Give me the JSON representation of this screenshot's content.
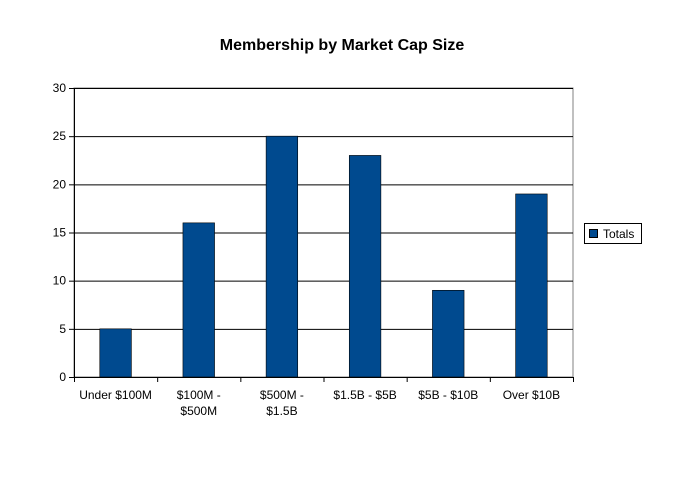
{
  "chart_data": {
    "type": "bar",
    "title": "Membership by Market Cap Size",
    "xlabel": "",
    "ylabel": "",
    "categories": [
      "Under $100M",
      "$100M - $500M",
      "$500M - $1.5B",
      "$1.5B - $5B",
      "$5B - $10B",
      "Over $10B"
    ],
    "category_label_lines": [
      [
        "Under $100M"
      ],
      [
        "$100M -",
        "$500M"
      ],
      [
        "$500M -",
        "$1.5B"
      ],
      [
        "$1.5B - $5B"
      ],
      [
        "$5B - $10B"
      ],
      [
        "Over $10B"
      ]
    ],
    "series": [
      {
        "name": "Totals",
        "values": [
          5,
          16,
          25,
          23,
          9,
          19
        ],
        "color": "#004a8f"
      }
    ],
    "ylim": [
      0,
      30
    ],
    "yticks": [
      0,
      5,
      10,
      15,
      20,
      25,
      30
    ],
    "grid": true,
    "legend_position": "right"
  }
}
